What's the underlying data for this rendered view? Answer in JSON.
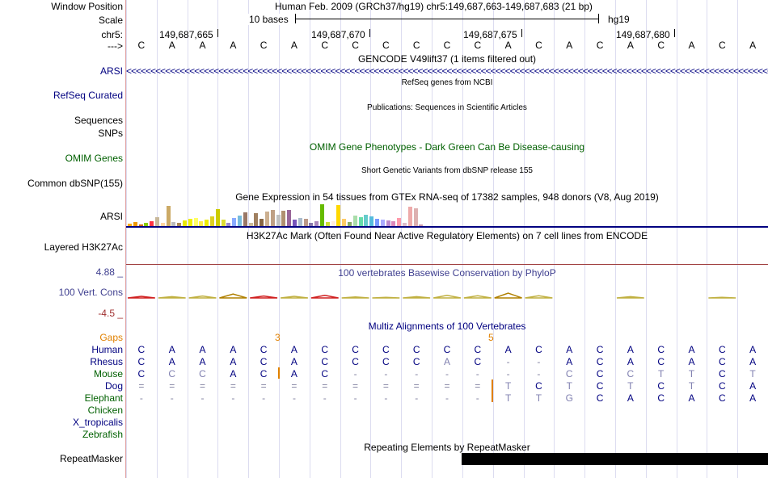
{
  "labels": {
    "window_position": "Window Position",
    "scale": "Scale",
    "chrom": "chr5:",
    "strand": "--->",
    "arsi": "ARSI",
    "refseq": "RefSeq Curated",
    "sequences": "Sequences",
    "snps": "SNPs",
    "omim": "OMIM Genes",
    "dbsnp": "Common dbSNP(155)",
    "arsi_gtex": "ARSI",
    "h3k27ac": "Layered H3K27Ac",
    "cons_max": "4.88 _",
    "cons_name": "100 Vert. Cons",
    "cons_min": "-4.5 _",
    "gaps": "Gaps",
    "species": [
      "Human",
      "Rhesus",
      "Mouse",
      "Dog",
      "Elephant",
      "Chicken",
      "X_tropicalis",
      "Zebrafish"
    ],
    "repeatmasker": "RepeatMasker"
  },
  "header": {
    "position_title": "Human Feb. 2009 (GRCh37/hg19)   chr5:149,687,663-149,687,683 (21 bp)",
    "scale_text": "10 bases",
    "assembly": "hg19",
    "coords": [
      "149,687,665",
      "149,687,670",
      "149,687,675",
      "149,687,680"
    ]
  },
  "sequence": [
    "C",
    "A",
    "A",
    "A",
    "C",
    "A",
    "C",
    "C",
    "C",
    "C",
    "C",
    "C",
    "A",
    "C",
    "A",
    "C",
    "A",
    "C",
    "A",
    "C",
    "A"
  ],
  "tracks": {
    "gencode": "GENCODE V49lift37 (1 items filtered out)",
    "refseq": "RefSeq genes from NCBI",
    "publications": "Publications: Sequences in Scientific Articles",
    "omim": "OMIM Gene Phenotypes - Dark Green Can Be Disease-causing",
    "dbsnp": "Short Genetic Variants from dbSNP release 155",
    "gtex": "Gene Expression in 54 tissues from GTEx RNA-seq of 17382 samples, 948 donors (V8, Aug 2019)",
    "h3k27ac": "H3K27Ac Mark (Often Found Near Active Regulatory Elements) on 7 cell lines from ENCODE",
    "phylop": "100 vertebrates Basewise Conservation by PhyloP",
    "multiz": "Multiz Alignments of 100 Vertebrates",
    "repeatmasker": "Repeating Elements by RepeatMasker"
  },
  "gaps": {
    "left": "3",
    "right": "5"
  },
  "alignment": {
    "Human": [
      "C",
      "A",
      "A",
      "A",
      "C",
      "A",
      "C",
      "C",
      "C",
      "C",
      "C",
      "C",
      "A",
      "C",
      "A",
      "C",
      "A",
      "C",
      "A",
      "C",
      "A"
    ],
    "Rhesus": [
      "C",
      "A",
      "A",
      "A",
      "C",
      "A",
      "C",
      "C",
      "C",
      "C",
      "A",
      "C",
      "-",
      "-",
      "A",
      "C",
      "A",
      "C",
      "A",
      "C",
      "A"
    ],
    "Mouse": [
      "C",
      "C",
      "C",
      "A",
      "C",
      "A",
      "C",
      "-",
      "-",
      "-",
      "-",
      "-",
      "-",
      "-",
      "C",
      "C",
      "C",
      "T",
      "T",
      "C",
      "T"
    ],
    "Dog": [
      "=",
      "=",
      "=",
      "=",
      "=",
      "=",
      "=",
      "=",
      "=",
      "=",
      "=",
      "=",
      "T",
      "C",
      "T",
      "C",
      "T",
      "C",
      "T",
      "C",
      "A"
    ],
    "Elephant": [
      "-",
      "-",
      "-",
      "-",
      "-",
      "-",
      "-",
      "-",
      "-",
      "-",
      "-",
      "-",
      "T",
      "T",
      "G",
      "C",
      "A",
      "C",
      "A",
      "C",
      "A"
    ]
  },
  "gtex_values": [
    3,
    5,
    2,
    4,
    6,
    11,
    4,
    25,
    5,
    4,
    7,
    9,
    10,
    6,
    8,
    12,
    21,
    8,
    4,
    10,
    13,
    17,
    4,
    16,
    9,
    18,
    20,
    14,
    19,
    20,
    8,
    10,
    9,
    4,
    6,
    27,
    5,
    6,
    26,
    9,
    5,
    13,
    11,
    14,
    12,
    9,
    8,
    7,
    6,
    10,
    4,
    24,
    22,
    2
  ],
  "gtex_colors": [
    "#ffaa00",
    "#ee9900",
    "#cc6600",
    "#88cc00",
    "#ff3344",
    "#c8b89a",
    "#ffd4a0",
    "#ccaa66",
    "#bbbbbb",
    "#aa8855",
    "#e8e800",
    "#f0f000",
    "#ffff66",
    "#ffee44",
    "#eeee00",
    "#ddd022",
    "#cccc00",
    "#dddd33",
    "#9988cc",
    "#88aaff",
    "#77bbdd",
    "#997766",
    "#ccbb99",
    "#a08060",
    "#886644",
    "#ccb090",
    "#bfa085",
    "#c0c0c0",
    "#b09070",
    "#996699",
    "#7755bb",
    "#aabbcc",
    "#bb9988",
    "#8877aa",
    "#aa88bb",
    "#66bb00",
    "#ccdd33",
    "#ffeedd",
    "#ffd800",
    "#ffcc66",
    "#88aa66",
    "#aaddaa",
    "#66ddaa",
    "#66cccc",
    "#55bbdd",
    "#7799ff",
    "#aaaaff",
    "#bb88cc",
    "#dd88bb",
    "#ff99aa",
    "#ddbbcc",
    "#eeaaaa",
    "#ddb0b0",
    "#cc99aa"
  ],
  "conservation": [
    0.5,
    -0.4,
    -0.6,
    -1.2,
    0.6,
    -0.5,
    0.8,
    -0.3,
    -0.2,
    -0.4,
    -0.8,
    -0.7,
    -1.5,
    -0.7,
    0,
    0,
    -0.4,
    0,
    0,
    -0.2,
    0
  ],
  "colors": {
    "track_label": "#000080",
    "green_label": "#006000",
    "gaps": "#e08000",
    "black_repeat": "#000000"
  }
}
